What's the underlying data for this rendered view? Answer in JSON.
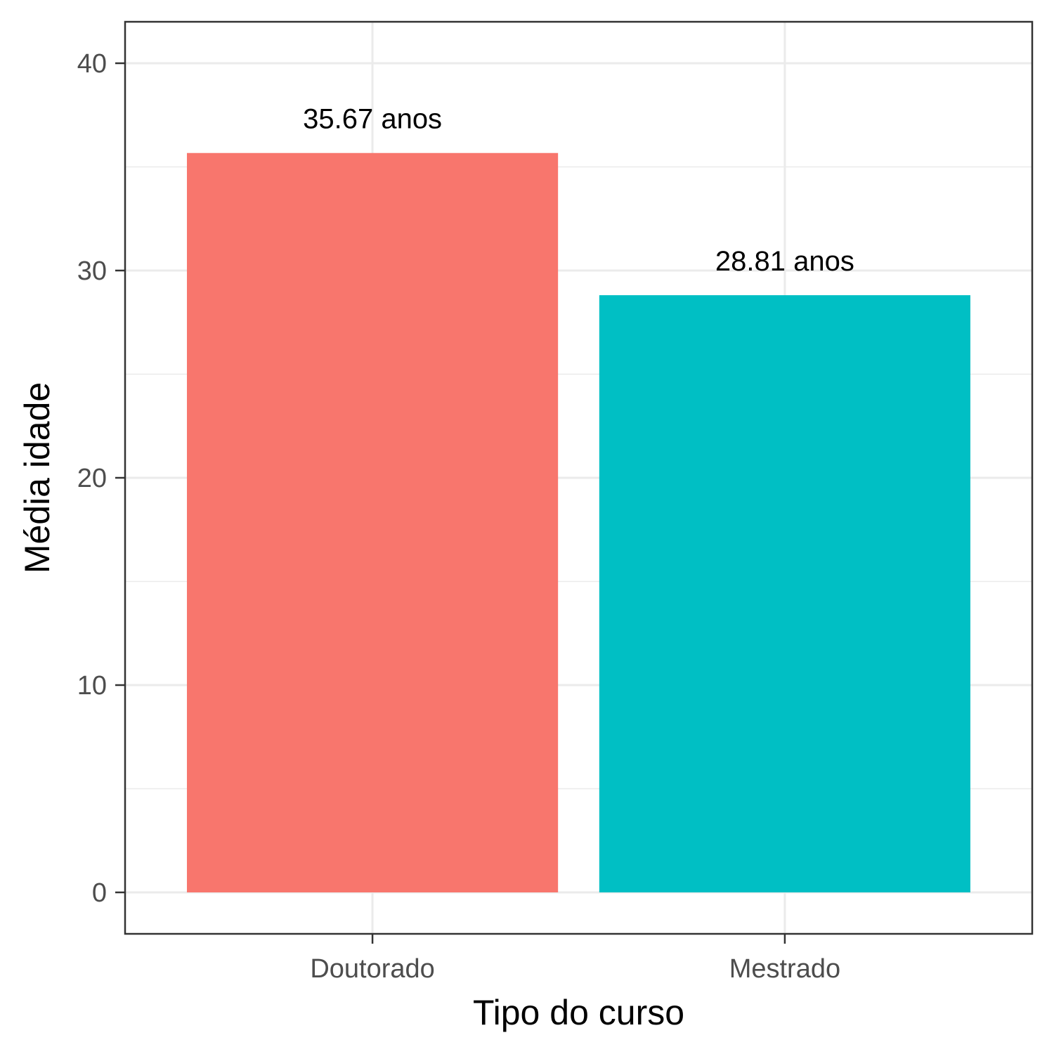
{
  "chart_data": {
    "type": "bar",
    "title": "",
    "xlabel": "Tipo do curso",
    "ylabel": "Média idade",
    "categories": [
      "Doutorado",
      "Mestrado"
    ],
    "values": [
      35.67,
      28.81
    ],
    "data_labels": [
      "35.67 anos",
      "28.81 anos"
    ],
    "colors": [
      "#F8766D",
      "#00BFC4"
    ],
    "ylim": [
      -2,
      42
    ],
    "yticks": [
      0,
      10,
      20,
      30,
      40
    ],
    "ytick_labels": [
      "0",
      "10",
      "20",
      "30",
      "40"
    ],
    "grid": true,
    "legend": "none"
  }
}
